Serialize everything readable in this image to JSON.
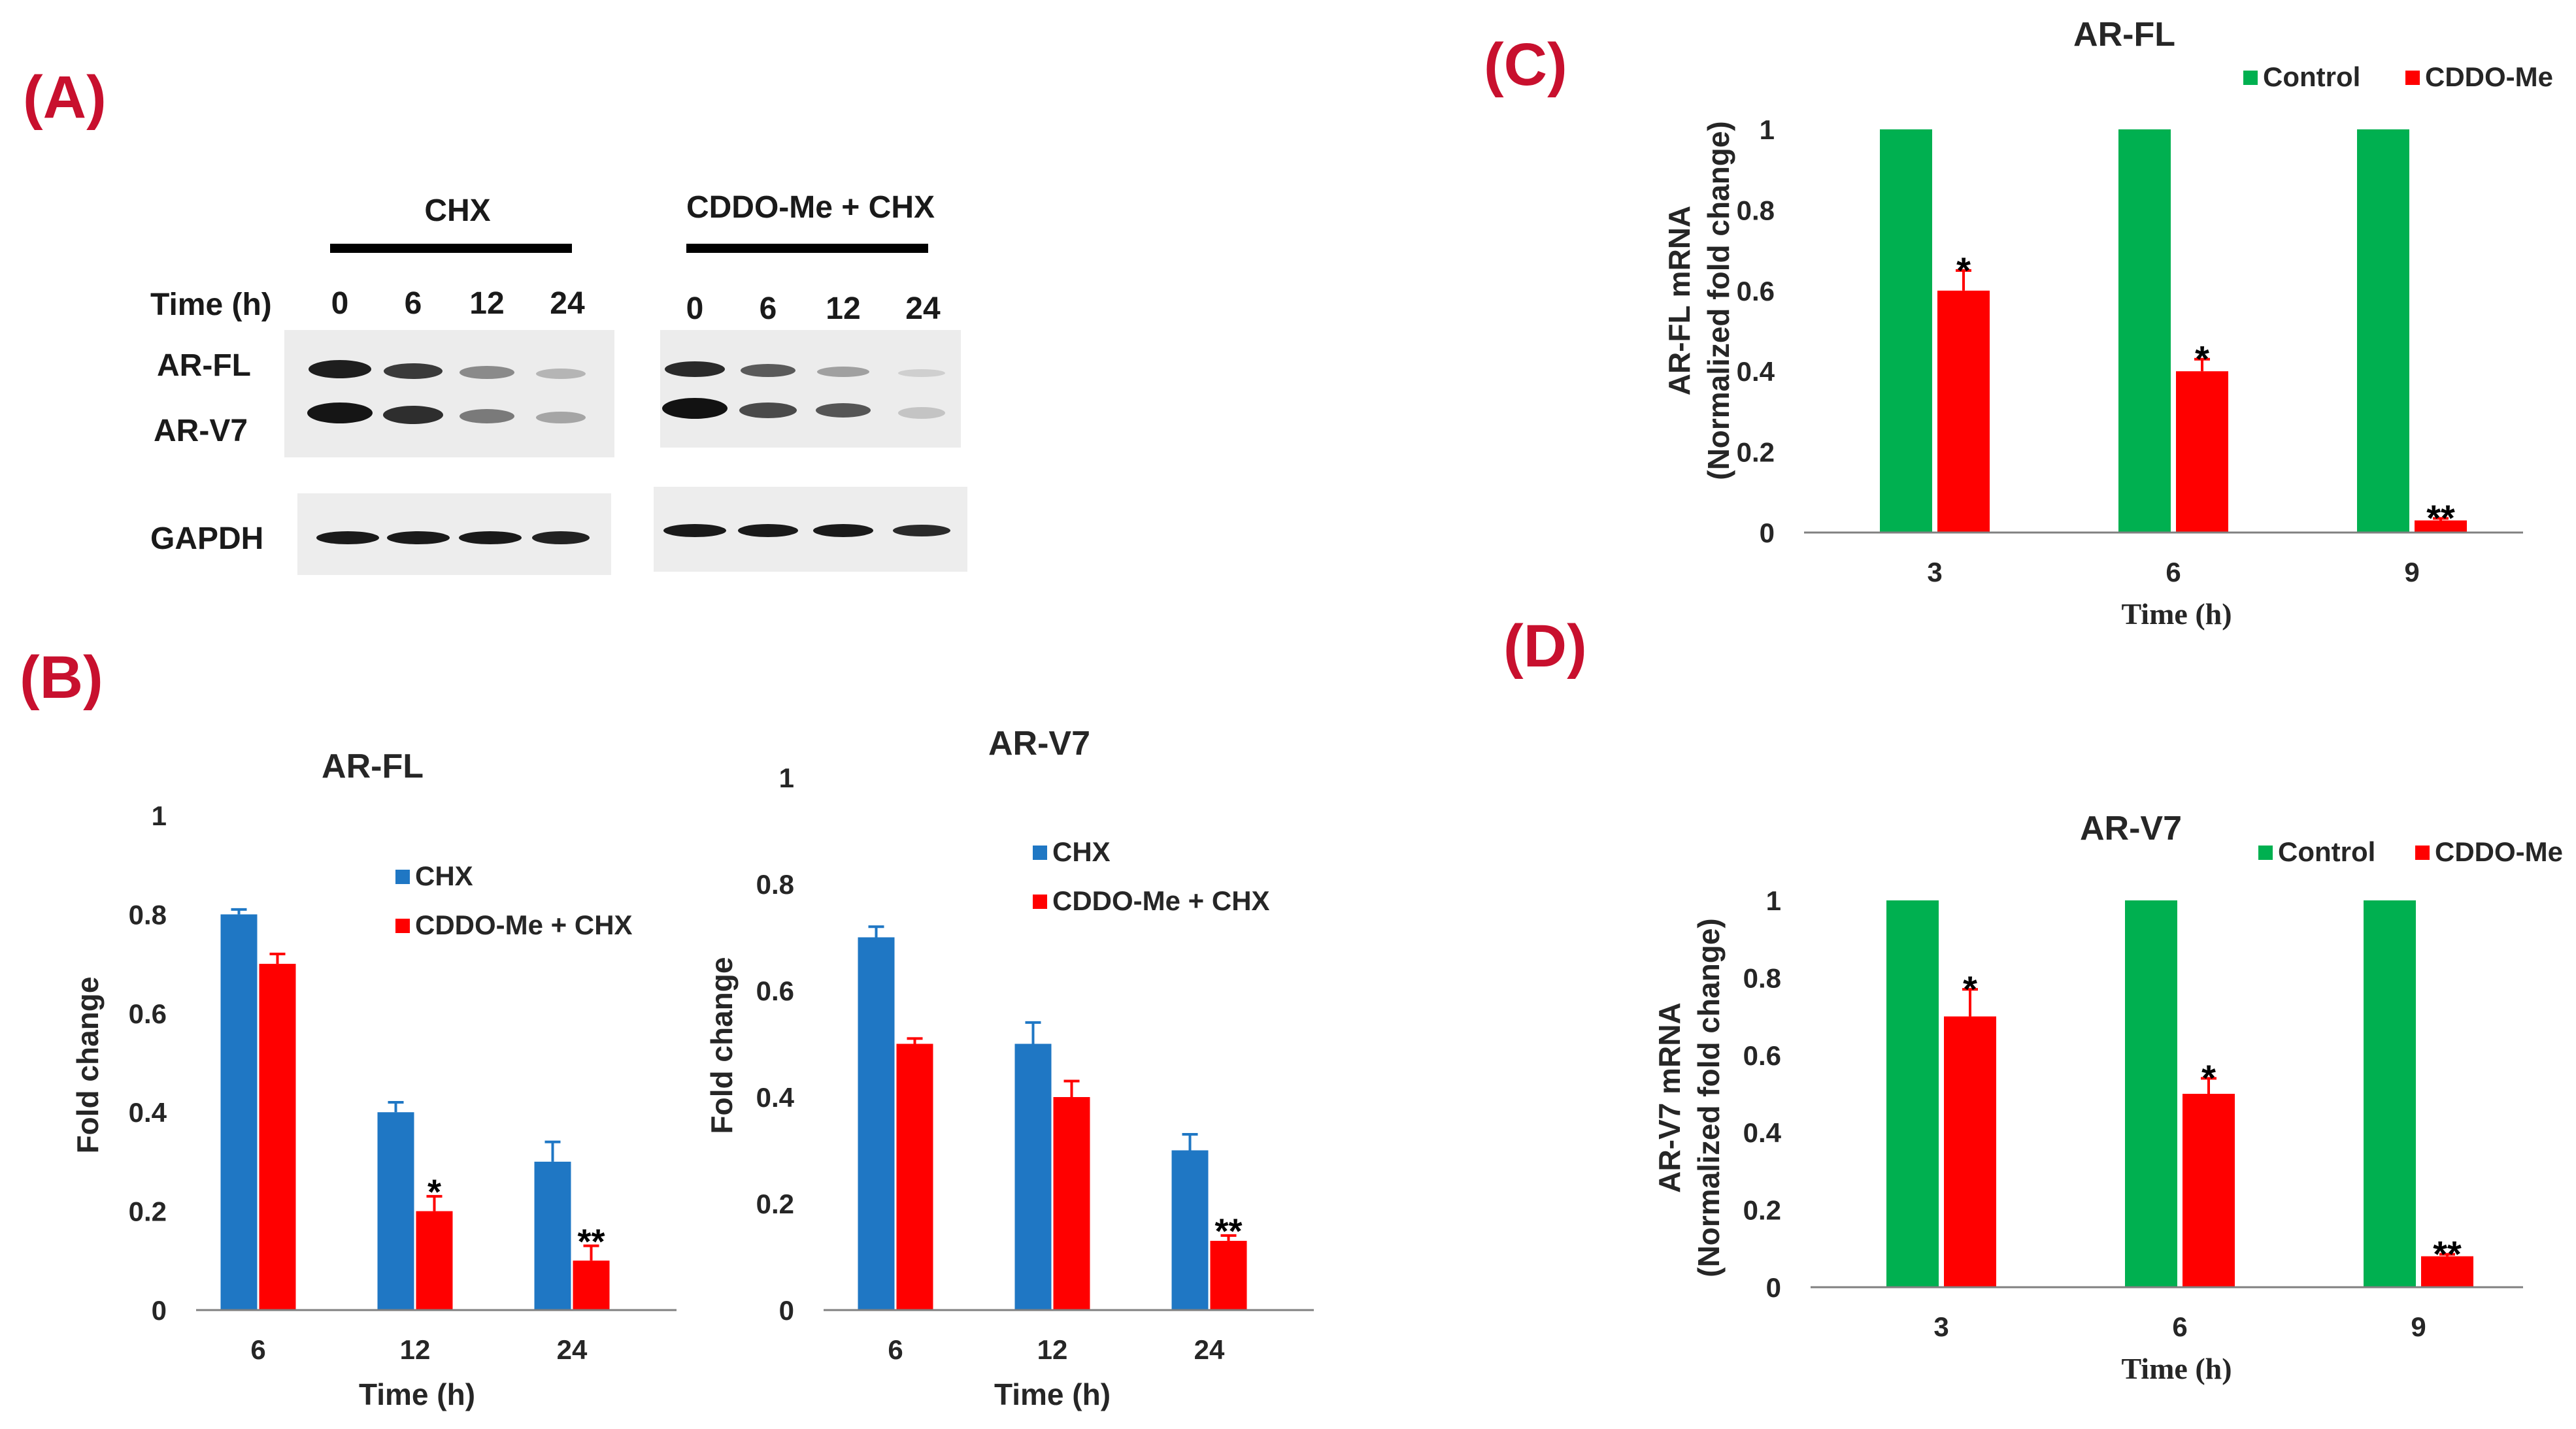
{
  "panels": {
    "a": "(A)",
    "b": "(B)",
    "c": "(C)",
    "d": "(D)"
  },
  "blot": {
    "group1": "CHX",
    "group2": "CDDO-Me + CHX",
    "time_label": "Time (h)",
    "times": [
      "0",
      "6",
      "12",
      "24"
    ],
    "band_labels": [
      "AR-FL",
      "AR-V7",
      "GAPDH"
    ]
  },
  "colors": {
    "chx": "#1f77c4",
    "cddo": "#ff0000",
    "control": "#00b050",
    "panel_label": "#c8102e"
  },
  "chart_data": [
    {
      "id": "b1",
      "type": "bar",
      "title": "AR-FL",
      "xlabel": "Time (h)",
      "ylabel": "Fold change",
      "categories": [
        "6",
        "12",
        "24"
      ],
      "ylim": [
        0,
        1
      ],
      "yticks": [
        "0",
        "0.2",
        "0.4",
        "0.6",
        "0.8",
        "1"
      ],
      "series": [
        {
          "name": "CHX",
          "color": "#1f77c4",
          "values": [
            0.8,
            0.4,
            0.3
          ],
          "errors": [
            0.01,
            0.02,
            0.04
          ]
        },
        {
          "name": "CDDO-Me + CHX",
          "color": "#ff0000",
          "values": [
            0.7,
            0.2,
            0.1
          ],
          "errors": [
            0.02,
            0.03,
            0.03
          ]
        }
      ],
      "annotations": [
        {
          "series": 1,
          "category": 1,
          "text": "*"
        },
        {
          "series": 1,
          "category": 2,
          "text": "**"
        }
      ],
      "legend_position": "upper-right"
    },
    {
      "id": "b2",
      "type": "bar",
      "title": "AR-V7",
      "xlabel": "Time (h)",
      "ylabel": "Fold change",
      "categories": [
        "6",
        "12",
        "24"
      ],
      "ylim": [
        0,
        1
      ],
      "yticks": [
        "0",
        "0.2",
        "0.4",
        "0.6",
        "0.8",
        "1"
      ],
      "series": [
        {
          "name": "CHX",
          "color": "#1f77c4",
          "values": [
            0.7,
            0.5,
            0.3
          ],
          "errors": [
            0.02,
            0.04,
            0.03
          ]
        },
        {
          "name": "CDDO-Me + CHX",
          "color": "#ff0000",
          "values": [
            0.5,
            0.4,
            0.13
          ],
          "errors": [
            0.01,
            0.03,
            0.01
          ]
        }
      ],
      "annotations": [
        {
          "series": 1,
          "category": 2,
          "text": "**"
        }
      ],
      "legend_position": "upper-right"
    },
    {
      "id": "c",
      "type": "bar",
      "title": "AR-FL",
      "xlabel": "Time (h)",
      "ylabel": "AR-FL mRNA",
      "ylabel2": "(Normalized fold change)",
      "categories": [
        "3",
        "6",
        "9"
      ],
      "ylim": [
        0,
        1
      ],
      "yticks": [
        "0",
        "0.2",
        "0.4",
        "0.6",
        "0.8",
        "1"
      ],
      "series": [
        {
          "name": "Control",
          "color": "#00b050",
          "values": [
            1,
            1,
            1
          ],
          "errors": [
            0,
            0,
            0
          ]
        },
        {
          "name": "CDDO-Me",
          "color": "#ff0000",
          "values": [
            0.6,
            0.4,
            0.03
          ],
          "errors": [
            0.05,
            0.03,
            0.005
          ]
        }
      ],
      "annotations": [
        {
          "series": 1,
          "category": 0,
          "text": "*"
        },
        {
          "series": 1,
          "category": 1,
          "text": "*"
        },
        {
          "series": 1,
          "category": 2,
          "text": "**"
        }
      ],
      "legend_position": "top-right"
    },
    {
      "id": "d",
      "type": "bar",
      "title": "AR-V7",
      "xlabel": "Time (h)",
      "ylabel": "AR-V7 mRNA",
      "ylabel2": "(Normalized fold change)",
      "categories": [
        "3",
        "6",
        "9"
      ],
      "ylim": [
        0,
        1
      ],
      "yticks": [
        "0",
        "0.2",
        "0.4",
        "0.6",
        "0.8",
        "1"
      ],
      "series": [
        {
          "name": "Control",
          "color": "#00b050",
          "values": [
            1,
            1,
            1
          ],
          "errors": [
            0,
            0,
            0
          ]
        },
        {
          "name": "CDDO-Me",
          "color": "#ff0000",
          "values": [
            0.7,
            0.5,
            0.08
          ],
          "errors": [
            0.07,
            0.04,
            0.005
          ]
        }
      ],
      "annotations": [
        {
          "series": 1,
          "category": 0,
          "text": "*"
        },
        {
          "series": 1,
          "category": 1,
          "text": "*"
        },
        {
          "series": 1,
          "category": 2,
          "text": "**"
        }
      ],
      "legend_position": "top-right"
    }
  ]
}
